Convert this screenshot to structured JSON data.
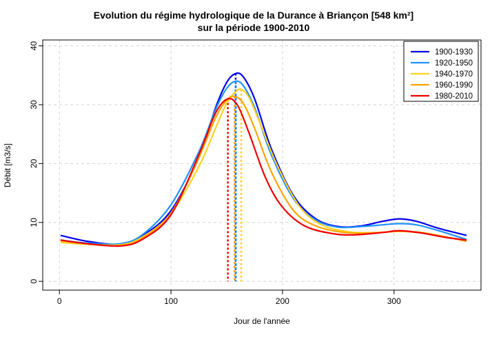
{
  "chart_data": {
    "type": "line",
    "title": [
      "Evolution du régime hydrologique de la Durance à Briançon [548 km²]",
      "sur la période 1900-2010"
    ],
    "xlabel": "Jour de l'année",
    "ylabel": "Débit [m3/s]",
    "xlim": [
      -15,
      378
    ],
    "ylim": [
      -1.5,
      41
    ],
    "xticks": [
      0,
      100,
      200,
      300
    ],
    "yticks": [
      0,
      10,
      20,
      30,
      40
    ],
    "grid": true,
    "legend_position": "top-right",
    "series": [
      {
        "name": "1900-1930",
        "color": "#0000ee",
        "peak_day": 158,
        "x": [
          1,
          25,
          55,
          75,
          100,
          125,
          140,
          150,
          158,
          165,
          175,
          190,
          210,
          230,
          250,
          270,
          290,
          305,
          320,
          340,
          365
        ],
        "y": [
          7.8,
          6.8,
          6.3,
          7.8,
          12.0,
          21.0,
          29.5,
          33.8,
          35.3,
          34.7,
          31.0,
          22.5,
          14.5,
          10.6,
          9.3,
          9.4,
          10.2,
          10.6,
          10.2,
          9.0,
          7.8
        ]
      },
      {
        "name": "1920-1950",
        "color": "#1e90ff",
        "peak_day": 158,
        "x": [
          1,
          25,
          55,
          75,
          100,
          125,
          140,
          150,
          158,
          165,
          175,
          190,
          210,
          230,
          250,
          270,
          290,
          305,
          320,
          340,
          365
        ],
        "y": [
          7.0,
          6.5,
          6.4,
          8.0,
          13.0,
          22.0,
          29.2,
          32.8,
          34.0,
          33.2,
          29.5,
          21.5,
          14.0,
          10.4,
          9.2,
          9.3,
          9.6,
          9.8,
          9.6,
          8.6,
          7.1
        ]
      },
      {
        "name": "1940-1970",
        "color": "#ffd21e",
        "peak_day": 163,
        "x": [
          1,
          25,
          55,
          75,
          100,
          125,
          140,
          150,
          158,
          163,
          170,
          180,
          195,
          215,
          235,
          260,
          285,
          305,
          325,
          345,
          365
        ],
        "y": [
          6.6,
          6.3,
          6.2,
          7.6,
          11.5,
          19.5,
          26.0,
          30.3,
          32.2,
          32.6,
          31.2,
          26.8,
          19.8,
          12.8,
          9.6,
          8.4,
          8.3,
          8.5,
          8.3,
          7.6,
          6.8
        ]
      },
      {
        "name": "1960-1990",
        "color": "#ffa500",
        "peak_day": 157,
        "x": [
          1,
          25,
          55,
          75,
          100,
          125,
          140,
          150,
          157,
          165,
          175,
          190,
          210,
          230,
          255,
          280,
          305,
          325,
          345,
          365
        ],
        "y": [
          6.9,
          6.3,
          6.1,
          7.4,
          11.6,
          21.0,
          27.8,
          30.8,
          31.4,
          30.2,
          26.0,
          18.6,
          12.0,
          9.4,
          8.3,
          8.2,
          8.5,
          8.2,
          7.6,
          6.8
        ]
      },
      {
        "name": "1980-2010",
        "color": "#ee0000",
        "peak_day": 151,
        "x": [
          1,
          25,
          55,
          75,
          100,
          125,
          140,
          151,
          160,
          170,
          185,
          200,
          220,
          245,
          265,
          290,
          305,
          325,
          345,
          365
        ],
        "y": [
          7.0,
          6.4,
          6.0,
          7.2,
          11.3,
          21.5,
          28.6,
          31.0,
          29.8,
          25.2,
          17.5,
          12.6,
          9.4,
          8.1,
          7.9,
          8.3,
          8.6,
          8.2,
          7.5,
          7.0
        ]
      }
    ]
  }
}
